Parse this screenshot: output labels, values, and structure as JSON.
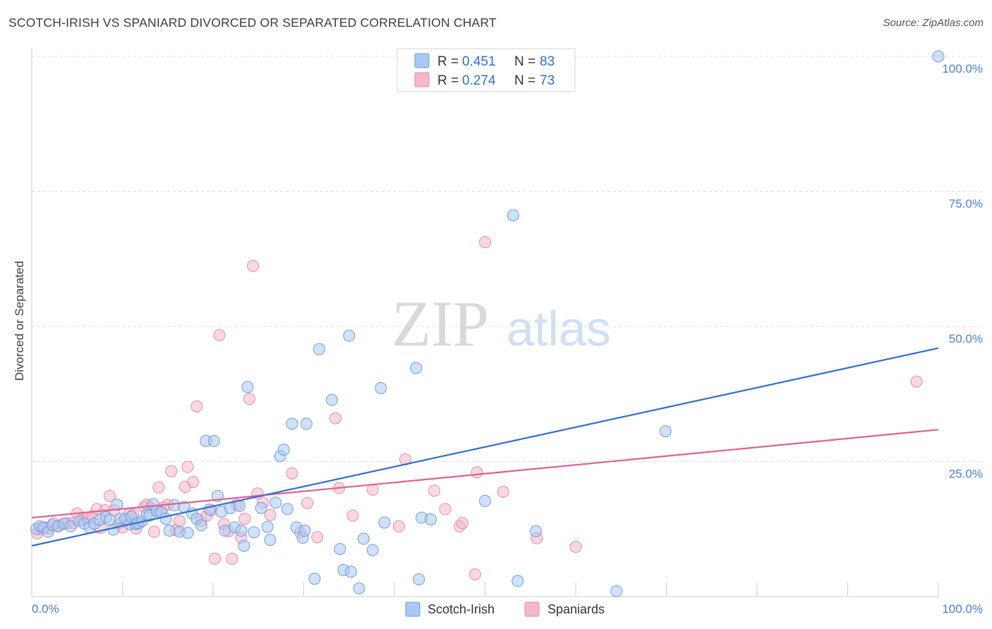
{
  "title": "SCOTCH-IRISH VS SPANIARD DIVORCED OR SEPARATED CORRELATION CHART",
  "source": "Source: ZipAtlas.com",
  "watermark": {
    "zip": "ZIP",
    "atlas": "atlas"
  },
  "colors": {
    "blue": "#2e6fd0",
    "pink": "#e0608f",
    "blue_fill": "#a9c8f2",
    "pink_fill": "#f5b8cb",
    "tick_blue": "#4a7fd0"
  },
  "legend": {
    "rows": [
      {
        "r_label": "R =",
        "r_value": "0.451",
        "n_label": "N =",
        "n_value": "83"
      },
      {
        "r_label": "R =",
        "r_value": "0.274",
        "n_label": "N =",
        "n_value": "73"
      }
    ]
  },
  "bottom_legend": [
    "Scotch-Irish",
    "Spaniards"
  ],
  "chart_data": {
    "type": "scatter",
    "ylabel": "Divorced or Separated",
    "xlabel": "",
    "x_tick_labels": [
      "0.0%",
      "100.0%"
    ],
    "y_tick_labels": [
      "25.0%",
      "50.0%",
      "75.0%",
      "100.0%"
    ],
    "xlim": [
      0,
      100
    ],
    "ylim": [
      0,
      100
    ],
    "grid": "horizontal dashed",
    "series": [
      {
        "name": "Scotch-Irish",
        "color": "#2e6fd0",
        "trend": {
          "x": [
            0,
            100
          ],
          "y": [
            9.4,
            46.0
          ]
        },
        "points": [
          [
            0.5,
            12.5
          ],
          [
            0.9,
            13.0
          ],
          [
            1.3,
            12.8
          ],
          [
            1.8,
            12.0
          ],
          [
            2.3,
            13.2
          ],
          [
            2.9,
            13.0
          ],
          [
            3.6,
            13.5
          ],
          [
            4.3,
            13.0
          ],
          [
            5.2,
            14.0
          ],
          [
            5.8,
            13.5
          ],
          [
            6.4,
            12.8
          ],
          [
            6.9,
            13.5
          ],
          [
            7.5,
            14.2
          ],
          [
            8.2,
            14.7
          ],
          [
            8.6,
            14.2
          ],
          [
            9.0,
            12.4
          ],
          [
            9.4,
            17.0
          ],
          [
            9.8,
            14.4
          ],
          [
            10.3,
            14.4
          ],
          [
            10.8,
            13.4
          ],
          [
            11.0,
            14.8
          ],
          [
            11.5,
            13.4
          ],
          [
            11.7,
            13.6
          ],
          [
            12.2,
            14.0
          ],
          [
            12.7,
            15.2
          ],
          [
            13.0,
            15.0
          ],
          [
            13.4,
            17.1
          ],
          [
            13.8,
            15.9
          ],
          [
            14.3,
            15.6
          ],
          [
            14.8,
            14.4
          ],
          [
            15.2,
            12.2
          ],
          [
            15.7,
            16.9
          ],
          [
            16.3,
            12.0
          ],
          [
            16.8,
            16.6
          ],
          [
            17.2,
            11.8
          ],
          [
            17.7,
            15.4
          ],
          [
            18.2,
            14.4
          ],
          [
            18.7,
            13.2
          ],
          [
            19.2,
            28.8
          ],
          [
            19.6,
            16.1
          ],
          [
            20.1,
            28.8
          ],
          [
            20.5,
            18.6
          ],
          [
            20.9,
            15.7
          ],
          [
            21.3,
            12.2
          ],
          [
            21.9,
            16.4
          ],
          [
            22.4,
            12.8
          ],
          [
            22.9,
            16.8
          ],
          [
            23.1,
            12.2
          ],
          [
            23.4,
            9.4
          ],
          [
            23.8,
            38.8
          ],
          [
            24.5,
            11.9
          ],
          [
            25.3,
            16.4
          ],
          [
            26.0,
            12.9
          ],
          [
            26.3,
            10.5
          ],
          [
            26.9,
            17.4
          ],
          [
            27.4,
            26.0
          ],
          [
            27.8,
            27.2
          ],
          [
            28.2,
            16.2
          ],
          [
            28.7,
            32.0
          ],
          [
            29.2,
            12.8
          ],
          [
            29.9,
            10.9
          ],
          [
            30.1,
            12.2
          ],
          [
            30.3,
            32.0
          ],
          [
            31.2,
            3.3
          ],
          [
            31.7,
            45.8
          ],
          [
            33.1,
            36.4
          ],
          [
            34.0,
            8.8
          ],
          [
            34.4,
            4.9
          ],
          [
            35.0,
            48.3
          ],
          [
            35.2,
            4.6
          ],
          [
            36.1,
            1.5
          ],
          [
            36.6,
            10.7
          ],
          [
            37.6,
            8.6
          ],
          [
            38.5,
            38.6
          ],
          [
            38.9,
            13.7
          ],
          [
            42.4,
            42.3
          ],
          [
            42.7,
            3.2
          ],
          [
            43.0,
            14.6
          ],
          [
            44.0,
            14.3
          ],
          [
            50.0,
            17.7
          ],
          [
            53.1,
            70.6
          ],
          [
            53.6,
            2.9
          ],
          [
            55.6,
            12.1
          ],
          [
            64.5,
            1.0
          ],
          [
            69.9,
            30.6
          ],
          [
            100.0,
            100.0
          ]
        ]
      },
      {
        "name": "Spaniards",
        "color": "#e0608f",
        "trend": {
          "x": [
            0,
            100
          ],
          "y": [
            14.6,
            30.9
          ]
        },
        "points": [
          [
            0.6,
            11.7
          ],
          [
            1.0,
            12.5
          ],
          [
            1.5,
            12.8
          ],
          [
            1.9,
            12.6
          ],
          [
            2.4,
            13.6
          ],
          [
            3.0,
            13.1
          ],
          [
            3.4,
            13.4
          ],
          [
            3.9,
            13.6
          ],
          [
            4.5,
            13.6
          ],
          [
            5.0,
            15.4
          ],
          [
            5.5,
            14.1
          ],
          [
            5.8,
            14.6
          ],
          [
            6.2,
            14.6
          ],
          [
            6.7,
            14.9
          ],
          [
            7.2,
            16.2
          ],
          [
            7.6,
            12.7
          ],
          [
            8.1,
            16.0
          ],
          [
            8.6,
            18.6
          ],
          [
            9.1,
            16.0
          ],
          [
            9.6,
            13.5
          ],
          [
            10.0,
            12.8
          ],
          [
            10.4,
            14.1
          ],
          [
            10.8,
            15.3
          ],
          [
            11.2,
            15.2
          ],
          [
            11.5,
            12.6
          ],
          [
            11.9,
            13.6
          ],
          [
            12.4,
            16.6
          ],
          [
            12.7,
            17.0
          ],
          [
            13.1,
            16.4
          ],
          [
            13.5,
            12.0
          ],
          [
            14.0,
            20.2
          ],
          [
            14.5,
            16.5
          ],
          [
            15.0,
            17.0
          ],
          [
            15.4,
            23.2
          ],
          [
            15.9,
            12.3
          ],
          [
            16.3,
            14.0
          ],
          [
            16.9,
            20.3
          ],
          [
            17.2,
            24.0
          ],
          [
            17.8,
            21.2
          ],
          [
            18.2,
            35.2
          ],
          [
            18.7,
            14.0
          ],
          [
            19.3,
            15.0
          ],
          [
            19.8,
            16.0
          ],
          [
            20.2,
            7.0
          ],
          [
            20.7,
            48.4
          ],
          [
            21.2,
            13.4
          ],
          [
            21.7,
            12.1
          ],
          [
            22.1,
            7.0
          ],
          [
            22.6,
            17.0
          ],
          [
            23.1,
            10.9
          ],
          [
            23.5,
            14.4
          ],
          [
            24.0,
            36.6
          ],
          [
            24.4,
            61.2
          ],
          [
            24.9,
            19.1
          ],
          [
            25.5,
            17.4
          ],
          [
            26.3,
            15.1
          ],
          [
            28.7,
            22.8
          ],
          [
            29.6,
            11.9
          ],
          [
            30.4,
            17.3
          ],
          [
            31.5,
            11.0
          ],
          [
            33.5,
            33.0
          ],
          [
            33.9,
            20.1
          ],
          [
            35.4,
            15.0
          ],
          [
            37.6,
            19.8
          ],
          [
            40.5,
            13.0
          ],
          [
            41.2,
            25.4
          ],
          [
            44.4,
            19.6
          ],
          [
            45.6,
            16.2
          ],
          [
            47.2,
            13.0
          ],
          [
            47.5,
            13.6
          ],
          [
            48.9,
            4.1
          ],
          [
            49.1,
            23.0
          ],
          [
            50.0,
            65.6
          ],
          [
            52.0,
            19.4
          ],
          [
            55.7,
            10.8
          ],
          [
            60.0,
            9.2
          ],
          [
            97.6,
            39.8
          ]
        ]
      }
    ]
  }
}
